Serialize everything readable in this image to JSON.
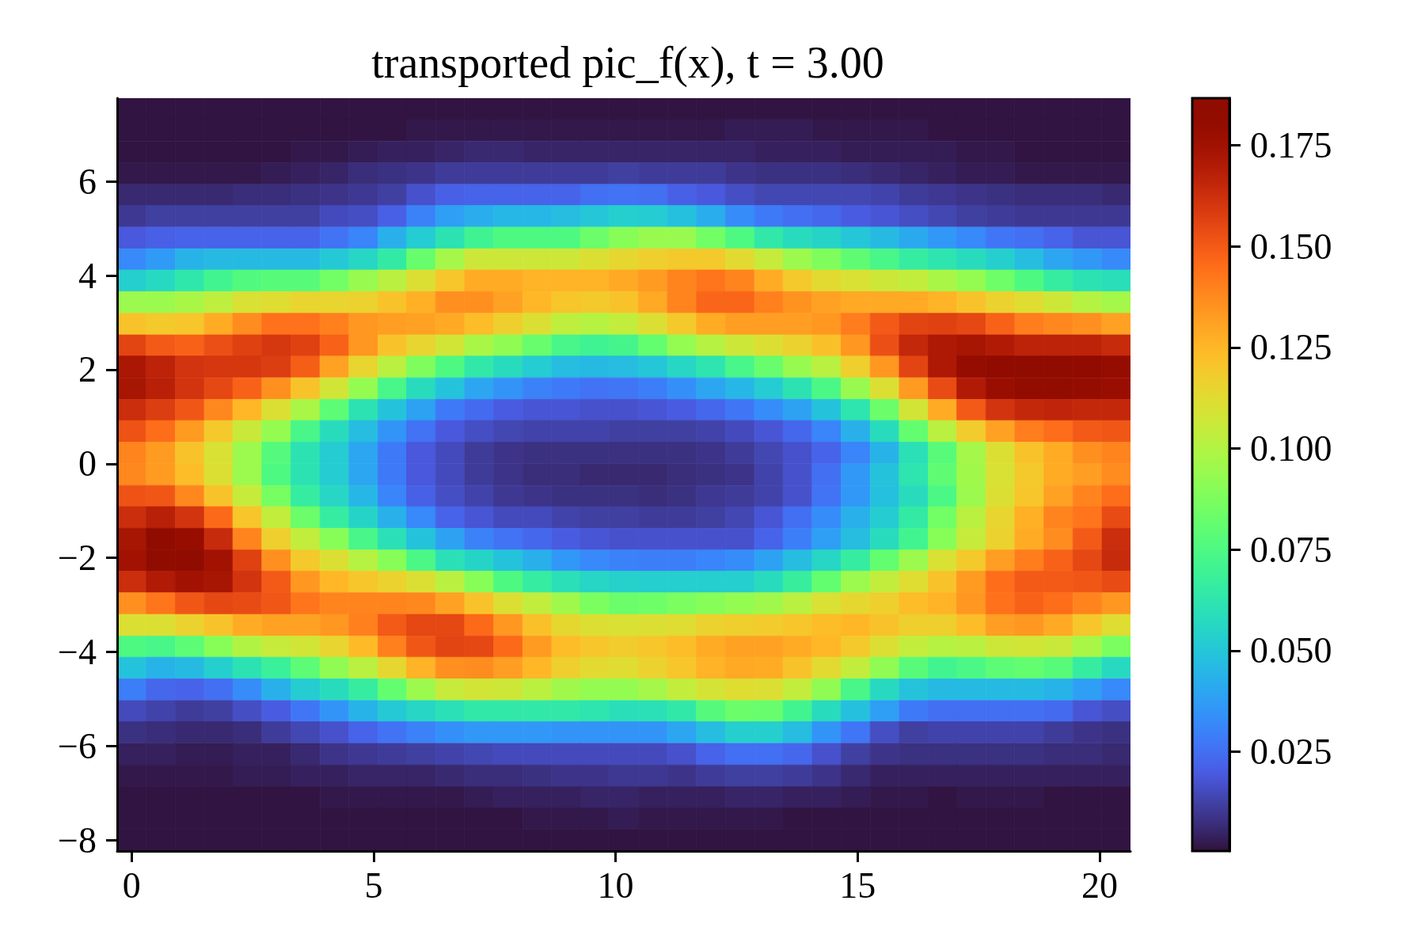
{
  "chart_data": {
    "type": "heatmap",
    "title": "transported pic_f(x), t = 3.00",
    "x": [
      0,
      0.6,
      1.2,
      1.8,
      2.39,
      2.99,
      3.59,
      4.19,
      4.79,
      5.39,
      5.98,
      6.58,
      7.18,
      7.78,
      8.38,
      8.98,
      9.57,
      10.17,
      10.77,
      11.37,
      11.97,
      12.57,
      13.17,
      13.76,
      14.36,
      14.96,
      15.56,
      16.16,
      16.76,
      17.35,
      17.95,
      18.55,
      19.15,
      19.75,
      20.35
    ],
    "y": [
      7.54,
      7.09,
      6.63,
      6.17,
      5.71,
      5.26,
      4.8,
      4.34,
      3.89,
      3.43,
      2.97,
      2.51,
      2.06,
      1.6,
      1.14,
      0.69,
      0.23,
      -0.23,
      -0.69,
      -1.14,
      -1.6,
      -2.06,
      -2.51,
      -2.97,
      -3.43,
      -3.89,
      -4.34,
      -4.8,
      -5.26,
      -5.71,
      -6.17,
      -6.63,
      -7.09,
      -7.54,
      -8
    ],
    "xlim": [
      -0.3,
      20.64
    ],
    "ylim": [
      -8.23,
      7.77
    ],
    "xticks": [
      0,
      5,
      10,
      15,
      20
    ],
    "yticks": [
      {
        "value": -8,
        "label": "−8"
      },
      {
        "value": -6,
        "label": "−6"
      },
      {
        "value": -4,
        "label": "−4"
      },
      {
        "value": -2,
        "label": "−2"
      },
      0,
      2,
      4,
      6
    ],
    "clim": [
      0.0004,
      0.1867
    ],
    "cticks": [
      0.025,
      {
        "value": 0.05,
        "label": "0.050"
      },
      0.075,
      {
        "value": 0.1,
        "label": "0.100"
      },
      0.125,
      {
        "value": 0.15,
        "label": "0.150"
      },
      0.175
    ],
    "cells": [
      [
        0.001,
        0.001,
        0.001,
        0.001,
        0.001,
        0.001,
        0.001,
        0.001,
        0.001,
        0.001,
        0.001,
        0.001,
        0.001,
        0.001,
        0.001,
        0.001,
        0.001,
        0.001,
        0.001,
        0.001,
        0.001,
        0.001,
        0.001,
        0.001,
        0.001,
        0.001,
        0.001,
        0.001,
        0.001,
        0.001,
        0.001,
        0.001,
        0.001,
        0.001,
        0.001
      ],
      [
        0.001,
        0.001,
        0.001,
        0.001,
        0.001,
        0.001,
        0.001,
        0.001,
        0.001,
        0.001,
        0.002,
        0.002,
        0.002,
        0.002,
        0.002,
        0.002,
        0.002,
        0.002,
        0.002,
        0.002,
        0.002,
        0.003,
        0.003,
        0.003,
        0.002,
        0.002,
        0.002,
        0.002,
        0.001,
        0.001,
        0.001,
        0.001,
        0.001,
        0.001,
        0.001
      ],
      [
        0.001,
        0.001,
        0.001,
        0.001,
        0.001,
        0.001,
        0.002,
        0.002,
        0.003,
        0.004,
        0.004,
        0.005,
        0.006,
        0.006,
        0.005,
        0.005,
        0.005,
        0.005,
        0.005,
        0.005,
        0.005,
        0.005,
        0.004,
        0.004,
        0.004,
        0.003,
        0.003,
        0.003,
        0.003,
        0.002,
        0.002,
        0.001,
        0.001,
        0.001,
        0.001
      ],
      [
        0.002,
        0.002,
        0.002,
        0.002,
        0.002,
        0.003,
        0.004,
        0.005,
        0.007,
        0.008,
        0.009,
        0.011,
        0.011,
        0.011,
        0.011,
        0.011,
        0.011,
        0.012,
        0.011,
        0.011,
        0.011,
        0.009,
        0.008,
        0.008,
        0.008,
        0.007,
        0.006,
        0.005,
        0.004,
        0.003,
        0.003,
        0.002,
        0.002,
        0.002,
        0.002
      ],
      [
        0.006,
        0.006,
        0.006,
        0.006,
        0.007,
        0.007,
        0.008,
        0.009,
        0.01,
        0.012,
        0.017,
        0.021,
        0.022,
        0.022,
        0.022,
        0.022,
        0.025,
        0.026,
        0.025,
        0.021,
        0.019,
        0.016,
        0.014,
        0.014,
        0.014,
        0.014,
        0.013,
        0.011,
        0.01,
        0.009,
        0.008,
        0.007,
        0.007,
        0.007,
        0.006
      ],
      [
        0.01,
        0.012,
        0.012,
        0.012,
        0.012,
        0.012,
        0.012,
        0.015,
        0.016,
        0.021,
        0.03,
        0.038,
        0.042,
        0.045,
        0.045,
        0.047,
        0.05,
        0.053,
        0.052,
        0.048,
        0.042,
        0.033,
        0.028,
        0.025,
        0.023,
        0.02,
        0.018,
        0.016,
        0.014,
        0.012,
        0.011,
        0.01,
        0.01,
        0.01,
        0.01
      ],
      [
        0.019,
        0.021,
        0.022,
        0.022,
        0.022,
        0.022,
        0.022,
        0.026,
        0.031,
        0.043,
        0.052,
        0.061,
        0.07,
        0.075,
        0.075,
        0.075,
        0.083,
        0.09,
        0.094,
        0.094,
        0.085,
        0.075,
        0.064,
        0.058,
        0.055,
        0.05,
        0.046,
        0.041,
        0.036,
        0.032,
        0.027,
        0.025,
        0.022,
        0.018,
        0.018
      ],
      [
        0.032,
        0.037,
        0.044,
        0.046,
        0.046,
        0.046,
        0.046,
        0.051,
        0.056,
        0.065,
        0.082,
        0.097,
        0.107,
        0.107,
        0.107,
        0.107,
        0.111,
        0.114,
        0.117,
        0.119,
        0.119,
        0.113,
        0.105,
        0.095,
        0.088,
        0.08,
        0.073,
        0.066,
        0.062,
        0.058,
        0.053,
        0.047,
        0.04,
        0.036,
        0.032
      ],
      [
        0.053,
        0.057,
        0.063,
        0.071,
        0.076,
        0.078,
        0.078,
        0.085,
        0.094,
        0.102,
        0.111,
        0.12,
        0.128,
        0.128,
        0.126,
        0.126,
        0.126,
        0.129,
        0.133,
        0.139,
        0.143,
        0.139,
        0.128,
        0.119,
        0.113,
        0.11,
        0.107,
        0.104,
        0.098,
        0.093,
        0.084,
        0.075,
        0.066,
        0.061,
        0.059
      ],
      [
        0.095,
        0.095,
        0.098,
        0.103,
        0.11,
        0.112,
        0.115,
        0.115,
        0.116,
        0.121,
        0.127,
        0.136,
        0.136,
        0.131,
        0.125,
        0.12,
        0.119,
        0.121,
        0.129,
        0.139,
        0.147,
        0.147,
        0.14,
        0.135,
        0.131,
        0.129,
        0.129,
        0.129,
        0.126,
        0.121,
        0.116,
        0.112,
        0.107,
        0.101,
        0.097
      ],
      [
        0.121,
        0.119,
        0.12,
        0.128,
        0.137,
        0.144,
        0.144,
        0.14,
        0.134,
        0.132,
        0.131,
        0.129,
        0.123,
        0.117,
        0.111,
        0.103,
        0.101,
        0.104,
        0.111,
        0.119,
        0.128,
        0.132,
        0.132,
        0.132,
        0.134,
        0.141,
        0.15,
        0.156,
        0.157,
        0.155,
        0.148,
        0.141,
        0.138,
        0.136,
        0.131
      ],
      [
        0.156,
        0.15,
        0.148,
        0.153,
        0.157,
        0.16,
        0.157,
        0.148,
        0.134,
        0.121,
        0.115,
        0.108,
        0.098,
        0.092,
        0.082,
        0.073,
        0.07,
        0.072,
        0.081,
        0.093,
        0.101,
        0.107,
        0.111,
        0.116,
        0.122,
        0.134,
        0.153,
        0.165,
        0.171,
        0.173,
        0.17,
        0.167,
        0.167,
        0.167,
        0.164
      ],
      [
        0.172,
        0.167,
        0.161,
        0.16,
        0.16,
        0.158,
        0.149,
        0.131,
        0.115,
        0.102,
        0.088,
        0.075,
        0.064,
        0.058,
        0.052,
        0.047,
        0.046,
        0.047,
        0.05,
        0.056,
        0.062,
        0.073,
        0.082,
        0.094,
        0.102,
        0.117,
        0.134,
        0.156,
        0.171,
        0.18,
        0.183,
        0.184,
        0.186,
        0.183,
        0.18
      ],
      [
        0.173,
        0.168,
        0.161,
        0.155,
        0.148,
        0.136,
        0.121,
        0.108,
        0.093,
        0.073,
        0.058,
        0.049,
        0.04,
        0.035,
        0.03,
        0.028,
        0.026,
        0.027,
        0.029,
        0.034,
        0.04,
        0.045,
        0.052,
        0.061,
        0.074,
        0.094,
        0.111,
        0.133,
        0.154,
        0.17,
        0.178,
        0.182,
        0.182,
        0.18,
        0.178
      ],
      [
        0.163,
        0.158,
        0.151,
        0.138,
        0.125,
        0.111,
        0.098,
        0.079,
        0.061,
        0.049,
        0.039,
        0.028,
        0.024,
        0.02,
        0.018,
        0.018,
        0.017,
        0.017,
        0.018,
        0.02,
        0.023,
        0.027,
        0.033,
        0.039,
        0.049,
        0.062,
        0.083,
        0.108,
        0.128,
        0.15,
        0.161,
        0.165,
        0.166,
        0.165,
        0.165
      ],
      [
        0.152,
        0.145,
        0.133,
        0.119,
        0.106,
        0.093,
        0.073,
        0.058,
        0.047,
        0.035,
        0.026,
        0.019,
        0.016,
        0.014,
        0.013,
        0.013,
        0.013,
        0.012,
        0.012,
        0.012,
        0.013,
        0.015,
        0.018,
        0.023,
        0.031,
        0.043,
        0.058,
        0.081,
        0.102,
        0.118,
        0.131,
        0.141,
        0.145,
        0.15,
        0.151
      ],
      [
        0.139,
        0.133,
        0.121,
        0.11,
        0.095,
        0.077,
        0.061,
        0.052,
        0.04,
        0.028,
        0.019,
        0.015,
        0.011,
        0.009,
        0.008,
        0.008,
        0.008,
        0.008,
        0.008,
        0.008,
        0.009,
        0.011,
        0.014,
        0.017,
        0.022,
        0.031,
        0.044,
        0.06,
        0.078,
        0.097,
        0.111,
        0.121,
        0.128,
        0.136,
        0.139
      ],
      [
        0.138,
        0.133,
        0.123,
        0.111,
        0.095,
        0.075,
        0.061,
        0.052,
        0.04,
        0.028,
        0.019,
        0.015,
        0.011,
        0.009,
        0.007,
        0.007,
        0.006,
        0.006,
        0.006,
        0.007,
        0.008,
        0.009,
        0.013,
        0.017,
        0.025,
        0.036,
        0.049,
        0.062,
        0.08,
        0.096,
        0.11,
        0.119,
        0.128,
        0.132,
        0.137
      ],
      [
        0.152,
        0.151,
        0.138,
        0.121,
        0.105,
        0.086,
        0.066,
        0.056,
        0.045,
        0.031,
        0.021,
        0.016,
        0.013,
        0.01,
        0.009,
        0.008,
        0.008,
        0.008,
        0.007,
        0.008,
        0.01,
        0.011,
        0.013,
        0.017,
        0.026,
        0.036,
        0.048,
        0.058,
        0.074,
        0.095,
        0.111,
        0.12,
        0.131,
        0.139,
        0.145
      ],
      [
        0.163,
        0.168,
        0.161,
        0.146,
        0.12,
        0.104,
        0.083,
        0.066,
        0.055,
        0.043,
        0.032,
        0.022,
        0.018,
        0.015,
        0.015,
        0.013,
        0.012,
        0.012,
        0.011,
        0.011,
        0.012,
        0.014,
        0.018,
        0.025,
        0.033,
        0.043,
        0.052,
        0.065,
        0.085,
        0.102,
        0.115,
        0.127,
        0.139,
        0.143,
        0.154
      ],
      [
        0.173,
        0.184,
        0.179,
        0.164,
        0.139,
        0.117,
        0.104,
        0.09,
        0.073,
        0.06,
        0.049,
        0.039,
        0.03,
        0.026,
        0.023,
        0.02,
        0.018,
        0.017,
        0.017,
        0.017,
        0.017,
        0.017,
        0.022,
        0.029,
        0.038,
        0.047,
        0.058,
        0.071,
        0.09,
        0.105,
        0.116,
        0.128,
        0.137,
        0.15,
        0.163
      ],
      [
        0.175,
        0.186,
        0.186,
        0.175,
        0.157,
        0.136,
        0.119,
        0.111,
        0.101,
        0.09,
        0.074,
        0.06,
        0.055,
        0.049,
        0.043,
        0.036,
        0.032,
        0.03,
        0.029,
        0.029,
        0.031,
        0.033,
        0.039,
        0.047,
        0.056,
        0.066,
        0.081,
        0.095,
        0.11,
        0.119,
        0.132,
        0.141,
        0.148,
        0.155,
        0.164
      ],
      [
        0.163,
        0.17,
        0.175,
        0.173,
        0.161,
        0.15,
        0.134,
        0.125,
        0.12,
        0.116,
        0.111,
        0.102,
        0.09,
        0.075,
        0.066,
        0.06,
        0.056,
        0.054,
        0.053,
        0.053,
        0.053,
        0.053,
        0.058,
        0.067,
        0.081,
        0.095,
        0.104,
        0.112,
        0.121,
        0.133,
        0.145,
        0.15,
        0.15,
        0.151,
        0.154
      ],
      [
        0.136,
        0.143,
        0.151,
        0.155,
        0.154,
        0.151,
        0.143,
        0.139,
        0.139,
        0.139,
        0.138,
        0.131,
        0.121,
        0.111,
        0.104,
        0.096,
        0.087,
        0.083,
        0.084,
        0.087,
        0.09,
        0.093,
        0.096,
        0.102,
        0.11,
        0.114,
        0.117,
        0.123,
        0.126,
        0.134,
        0.144,
        0.148,
        0.145,
        0.139,
        0.134
      ],
      [
        0.111,
        0.111,
        0.116,
        0.121,
        0.128,
        0.131,
        0.131,
        0.134,
        0.14,
        0.15,
        0.155,
        0.155,
        0.146,
        0.134,
        0.122,
        0.114,
        0.111,
        0.11,
        0.111,
        0.112,
        0.116,
        0.117,
        0.118,
        0.12,
        0.123,
        0.125,
        0.121,
        0.117,
        0.117,
        0.123,
        0.132,
        0.134,
        0.129,
        0.12,
        0.112
      ],
      [
        0.075,
        0.073,
        0.079,
        0.09,
        0.1,
        0.105,
        0.108,
        0.115,
        0.124,
        0.14,
        0.151,
        0.156,
        0.155,
        0.146,
        0.133,
        0.123,
        0.12,
        0.118,
        0.12,
        0.123,
        0.128,
        0.131,
        0.131,
        0.128,
        0.125,
        0.119,
        0.111,
        0.104,
        0.101,
        0.102,
        0.107,
        0.108,
        0.106,
        0.098,
        0.087
      ],
      [
        0.049,
        0.044,
        0.046,
        0.053,
        0.061,
        0.068,
        0.079,
        0.092,
        0.102,
        0.114,
        0.126,
        0.136,
        0.137,
        0.132,
        0.125,
        0.117,
        0.113,
        0.112,
        0.116,
        0.12,
        0.126,
        0.129,
        0.128,
        0.121,
        0.113,
        0.104,
        0.092,
        0.078,
        0.071,
        0.074,
        0.079,
        0.081,
        0.078,
        0.066,
        0.057
      ],
      [
        0.029,
        0.023,
        0.022,
        0.025,
        0.033,
        0.043,
        0.052,
        0.058,
        0.066,
        0.081,
        0.095,
        0.105,
        0.108,
        0.107,
        0.102,
        0.096,
        0.093,
        0.093,
        0.097,
        0.104,
        0.109,
        0.112,
        0.111,
        0.104,
        0.092,
        0.073,
        0.057,
        0.049,
        0.046,
        0.046,
        0.046,
        0.046,
        0.044,
        0.038,
        0.032
      ],
      [
        0.015,
        0.013,
        0.011,
        0.012,
        0.016,
        0.02,
        0.027,
        0.035,
        0.044,
        0.051,
        0.056,
        0.06,
        0.064,
        0.064,
        0.064,
        0.064,
        0.062,
        0.059,
        0.06,
        0.064,
        0.077,
        0.083,
        0.082,
        0.071,
        0.058,
        0.048,
        0.038,
        0.028,
        0.025,
        0.025,
        0.025,
        0.025,
        0.024,
        0.018,
        0.016
      ],
      [
        0.008,
        0.007,
        0.006,
        0.006,
        0.007,
        0.011,
        0.014,
        0.017,
        0.022,
        0.026,
        0.03,
        0.034,
        0.036,
        0.036,
        0.036,
        0.035,
        0.035,
        0.035,
        0.035,
        0.04,
        0.047,
        0.053,
        0.053,
        0.047,
        0.035,
        0.027,
        0.016,
        0.012,
        0.013,
        0.013,
        0.013,
        0.013,
        0.011,
        0.009,
        0.008
      ],
      [
        0.004,
        0.004,
        0.003,
        0.003,
        0.004,
        0.004,
        0.006,
        0.009,
        0.01,
        0.011,
        0.012,
        0.013,
        0.014,
        0.015,
        0.015,
        0.015,
        0.015,
        0.015,
        0.015,
        0.017,
        0.022,
        0.025,
        0.025,
        0.023,
        0.017,
        0.012,
        0.009,
        0.008,
        0.008,
        0.008,
        0.008,
        0.008,
        0.007,
        0.007,
        0.006
      ],
      [
        0.002,
        0.002,
        0.002,
        0.002,
        0.003,
        0.003,
        0.004,
        0.004,
        0.005,
        0.005,
        0.005,
        0.006,
        0.007,
        0.007,
        0.008,
        0.009,
        0.009,
        0.01,
        0.01,
        0.009,
        0.011,
        0.012,
        0.012,
        0.011,
        0.009,
        0.006,
        0.004,
        0.004,
        0.004,
        0.004,
        0.004,
        0.004,
        0.004,
        0.004,
        0.004
      ],
      [
        0.001,
        0.001,
        0.001,
        0.001,
        0.001,
        0.001,
        0.001,
        0.002,
        0.002,
        0.002,
        0.002,
        0.002,
        0.003,
        0.004,
        0.004,
        0.004,
        0.005,
        0.005,
        0.004,
        0.004,
        0.004,
        0.005,
        0.005,
        0.004,
        0.004,
        0.003,
        0.002,
        0.002,
        0.001,
        0.002,
        0.002,
        0.002,
        0.001,
        0.001,
        0.001
      ],
      [
        0.001,
        0.001,
        0.001,
        0.001,
        0.001,
        0.001,
        0.001,
        0.001,
        0.001,
        0.001,
        0.001,
        0.001,
        0.001,
        0.001,
        0.002,
        0.002,
        0.002,
        0.003,
        0.002,
        0.002,
        0.002,
        0.002,
        0.002,
        0.001,
        0.001,
        0.001,
        0.001,
        0.001,
        0.001,
        0.001,
        0.001,
        0.001,
        0.001,
        0.001,
        0.001
      ],
      [
        0.001,
        0.001,
        0.001,
        0.001,
        0.001,
        0.001,
        0.001,
        0.001,
        0.001,
        0.001,
        0.001,
        0.001,
        0.001,
        0.001,
        0.001,
        0.001,
        0.001,
        0.001,
        0.001,
        0.001,
        0.001,
        0.001,
        0.001,
        0.001,
        0.001,
        0.001,
        0.001,
        0.001,
        0.001,
        0.001,
        0.001,
        0.001,
        0.001,
        0.001,
        0.001
      ]
    ]
  }
}
